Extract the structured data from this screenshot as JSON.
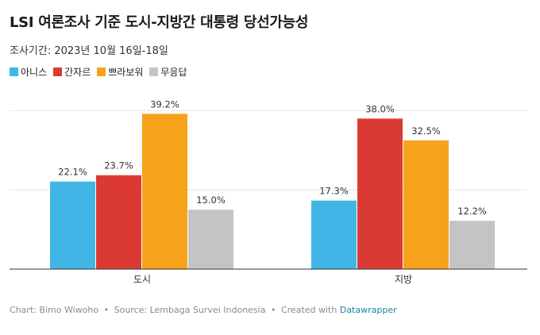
{
  "header": {
    "title": "LSI 여론조사 기준 도시-지방간 대통령 당선가능성",
    "subtitle": "조사기간: 2023년 10월 16일-18일"
  },
  "colors": {
    "series": [
      "#41b6e6",
      "#db3a34",
      "#f7a21b",
      "#c4c4c4"
    ],
    "grid": "#e6e6e6",
    "axis": "#333333",
    "label": "#333333",
    "brand": "#1d81a2"
  },
  "chart_data": {
    "type": "bar",
    "title": "LSI 여론조사 기준 도시-지방간 대통령 당선가능성",
    "subtitle": "조사기간: 2023년 10월 16일-18일",
    "categories": [
      "도시",
      "지방"
    ],
    "series": [
      {
        "name": "아니스",
        "values": [
          22.1,
          17.3
        ]
      },
      {
        "name": "간자르",
        "values": [
          23.7,
          38.0
        ]
      },
      {
        "name": "쁘라보워",
        "values": [
          39.2,
          32.5
        ]
      },
      {
        "name": "무응답",
        "values": [
          15.0,
          12.2
        ]
      }
    ],
    "data_labels": [
      [
        "22.1%",
        "17.3%"
      ],
      [
        "23.7%",
        "38.0%"
      ],
      [
        "39.2%",
        "32.5%"
      ],
      [
        "15.0%",
        "12.2%"
      ]
    ],
    "ylim": [
      0,
      40
    ],
    "grid": true,
    "legend": "top-left",
    "xlabel": "",
    "ylabel": ""
  },
  "footer": {
    "credit": "Chart: Bimo Wiwoho",
    "source": "Source: Lembaga Survei Indonesia",
    "created": "Created with",
    "brand": "Datawrapper",
    "separator": "•"
  }
}
